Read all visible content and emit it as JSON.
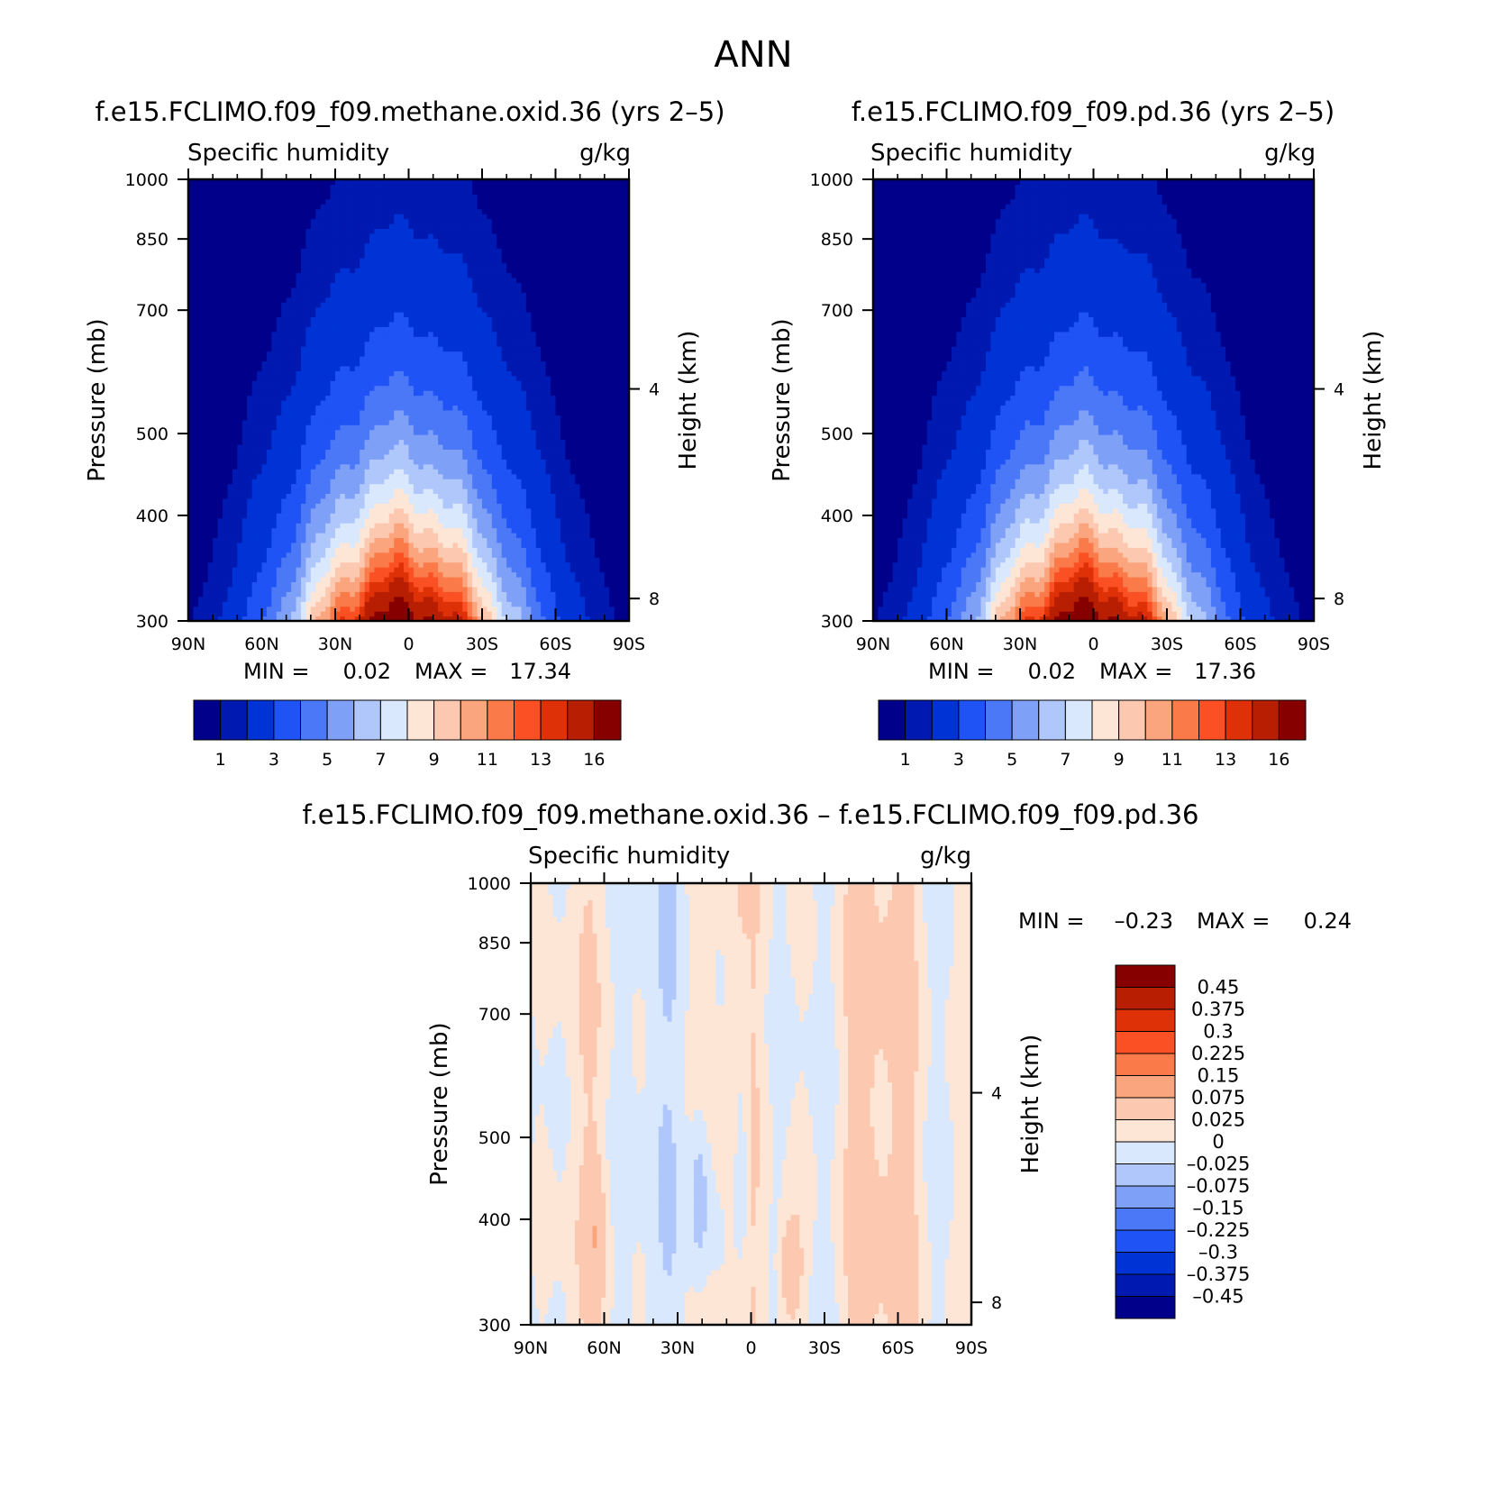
{
  "figure": {
    "title": "ANN"
  },
  "colors": {
    "abs": [
      "#00008b",
      "#0019b0",
      "#0033d6",
      "#1f53f5",
      "#4b78f7",
      "#7fa0f7",
      "#afc7fa",
      "#d9e8fd",
      "#fde6d6",
      "#fcc8b0",
      "#fba57e",
      "#fa7a4a",
      "#fb5023",
      "#df3108",
      "#b71e02",
      "#870000"
    ],
    "diff": [
      "#00008b",
      "#0019b0",
      "#0033d6",
      "#1f53f5",
      "#4b78f7",
      "#7fa0f7",
      "#afc7fa",
      "#d9e8fd",
      "#fde6d6",
      "#fcc8b0",
      "#fba57e",
      "#fa7a4a",
      "#fb5023",
      "#df3108",
      "#b71e02",
      "#870000"
    ],
    "missing": "#ffffff"
  },
  "chart_data": [
    {
      "id": "p1",
      "type": "heatmap",
      "title": "f.e15.FCLIMO.f09_f09.methane.oxid.36 (yrs 2–5)",
      "variable": "Specific humidity",
      "units": "g/kg",
      "ylabel": "Pressure (mb)",
      "y2label": "Height (km)",
      "xticks": [
        "90N",
        "60N",
        "30N",
        "0",
        "30S",
        "60S",
        "90S"
      ],
      "xlim": [
        90,
        -90
      ],
      "yticks": [
        "300",
        "400",
        "500",
        "700",
        "850",
        "1000"
      ],
      "ylim": [
        1000,
        300
      ],
      "y_scale": "log",
      "y2ticks": [
        "8",
        "4"
      ],
      "min_label": "MIN =",
      "min_value": "0.02",
      "max_label": "MAX =",
      "max_value": "17.34",
      "colorbar_labels": [
        "1",
        "3",
        "5",
        "7",
        "9",
        "11",
        "13",
        "16"
      ],
      "colorbar_orientation": "horizontal"
    },
    {
      "id": "p2",
      "type": "heatmap",
      "title": "f.e15.FCLIMO.f09_f09.pd.36 (yrs 2–5)",
      "variable": "Specific humidity",
      "units": "g/kg",
      "ylabel": "Pressure (mb)",
      "y2label": "Height (km)",
      "xticks": [
        "90N",
        "60N",
        "30N",
        "0",
        "30S",
        "60S",
        "90S"
      ],
      "xlim": [
        90,
        -90
      ],
      "yticks": [
        "300",
        "400",
        "500",
        "700",
        "850",
        "1000"
      ],
      "ylim": [
        1000,
        300
      ],
      "y_scale": "log",
      "y2ticks": [
        "8",
        "4"
      ],
      "min_label": "MIN =",
      "min_value": "0.02",
      "max_label": "MAX =",
      "max_value": "17.36",
      "colorbar_labels": [
        "1",
        "3",
        "5",
        "7",
        "9",
        "11",
        "13",
        "16"
      ],
      "colorbar_orientation": "horizontal"
    },
    {
      "id": "p3",
      "type": "heatmap",
      "title": "f.e15.FCLIMO.f09_f09.methane.oxid.36 – f.e15.FCLIMO.f09_f09.pd.36",
      "variable": "Specific humidity",
      "units": "g/kg",
      "ylabel": "Pressure (mb)",
      "y2label": "Height (km)",
      "xticks": [
        "90N",
        "60N",
        "30N",
        "0",
        "30S",
        "60S",
        "90S"
      ],
      "xlim": [
        90,
        -90
      ],
      "yticks": [
        "300",
        "400",
        "500",
        "700",
        "850",
        "1000"
      ],
      "ylim": [
        1000,
        300
      ],
      "y_scale": "log",
      "y2ticks": [
        "8",
        "4"
      ],
      "min_label": "MIN =",
      "min_value": "–0.23",
      "max_label": "MAX =",
      "max_value": "0.24",
      "colorbar_labels": [
        "0.45",
        "0.375",
        "0.3",
        "0.225",
        "0.15",
        "0.075",
        "0.025",
        "0",
        "–0.025",
        "–0.075",
        "–0.15",
        "–0.225",
        "–0.3",
        "–0.375",
        "–0.45"
      ],
      "colorbar_orientation": "vertical"
    }
  ]
}
